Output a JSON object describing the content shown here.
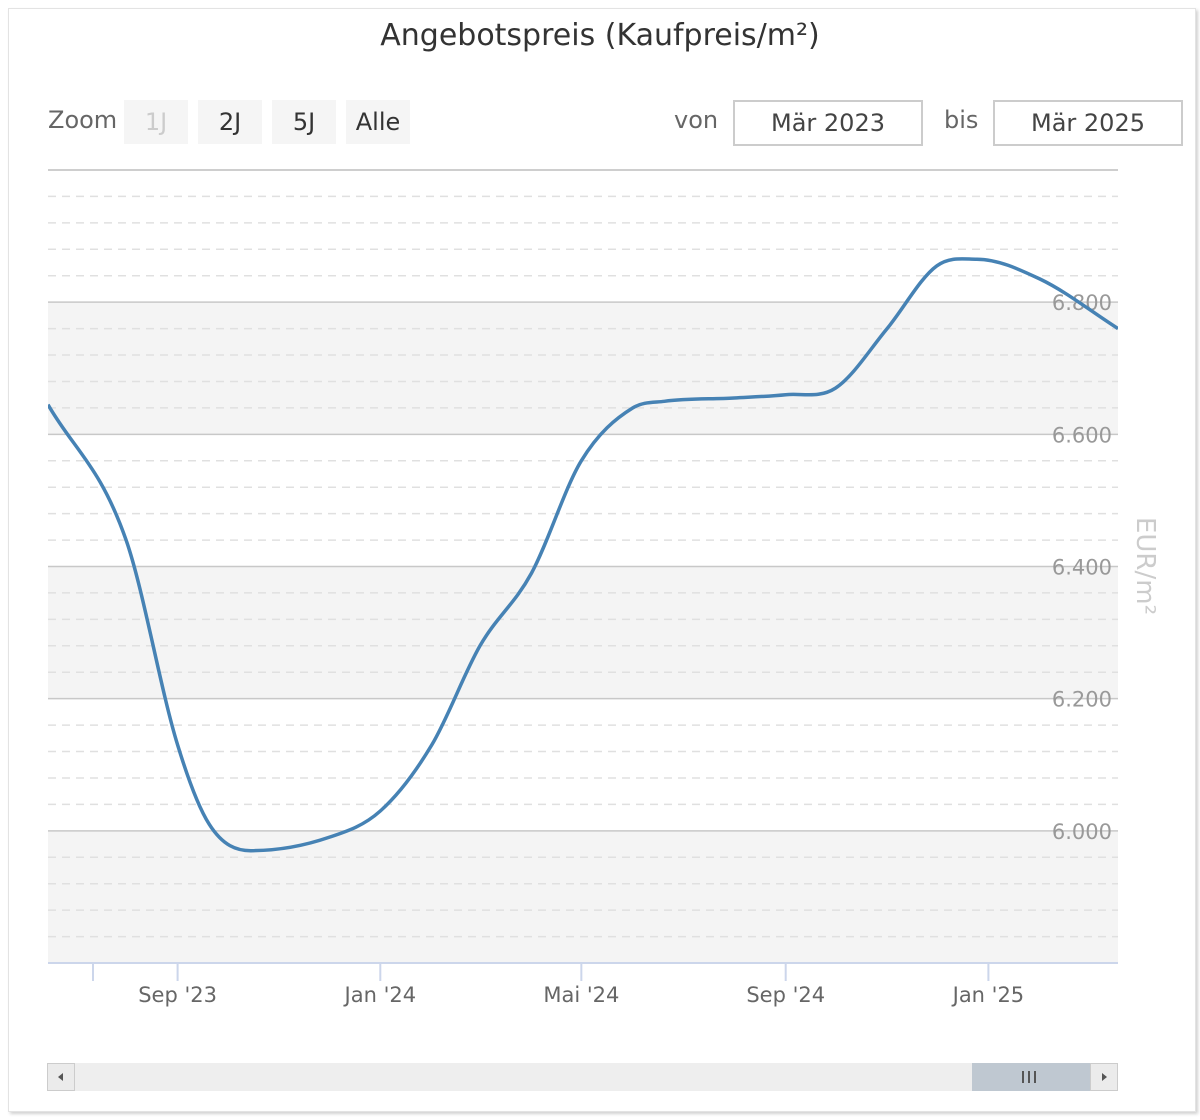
{
  "chart_data": {
    "type": "line",
    "title": "Angebotspreis (Kaufpreis/m²)",
    "ylabel": "EUR/m²",
    "ylim": [
      5800,
      7000
    ],
    "yticks": [
      6000,
      6200,
      6400,
      6600,
      6800
    ],
    "ytick_labels": [
      "6.000",
      "6.200",
      "6.400",
      "6.600",
      "6.800"
    ],
    "xlim": [
      "2023-06-15",
      "2025-03-20"
    ],
    "xticks": [
      "2023-06-01",
      "2023-09-01",
      "2024-01-01",
      "2024-05-01",
      "2024-09-01",
      "2025-01-01"
    ],
    "xtick_labels": [
      "",
      "Sep '23",
      "Jan '24",
      "Mai '24",
      "Sep '24",
      "Jan '25"
    ],
    "grid": true,
    "series": [
      {
        "color": "#4682b4",
        "x": [
          "2023-06-15",
          "2023-08-01",
          "2023-09-01",
          "2023-09-20",
          "2023-10-15",
          "2023-12-01",
          "2024-01-01",
          "2024-02-01",
          "2024-03-01",
          "2024-04-01",
          "2024-05-01",
          "2024-06-01",
          "2024-06-20",
          "2024-08-01",
          "2024-09-01",
          "2024-10-01",
          "2024-11-01",
          "2024-12-01",
          "2024-12-25",
          "2025-02-01",
          "2025-03-20"
        ],
        "values": [
          6645,
          6440,
          6130,
          6010,
          5970,
          5990,
          6030,
          6130,
          6280,
          6390,
          6560,
          6640,
          6650,
          6655,
          6660,
          6670,
          6760,
          6855,
          6865,
          6835,
          6760
        ]
      }
    ]
  },
  "controls": {
    "zoom_label": "Zoom",
    "zoom_buttons": [
      "1J",
      "2J",
      "5J",
      "Alle"
    ],
    "from_label": "von",
    "from_value": "Mär 2023",
    "to_label": "bis",
    "to_value": "Mär 2025"
  },
  "icons": {
    "scroll_left": "triangle-left-icon",
    "scroll_right": "triangle-right-icon",
    "thumb_grip": "grip-icon"
  }
}
